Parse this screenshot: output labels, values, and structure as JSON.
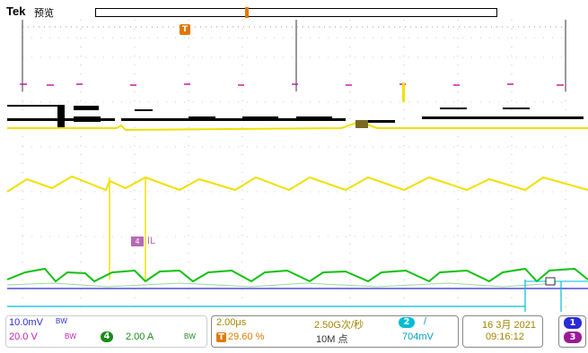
{
  "header": {
    "brand": "Tek",
    "mode": "预览"
  },
  "waveform": {
    "trigger_marker": "T",
    "channel_marker": "4",
    "channel_label": "IL",
    "colors": {
      "ch1": "#2b2bd6",
      "ch2": "#00bcd4",
      "ch3": "#c21ea8",
      "ch4": "#10c010",
      "yellow": "#f0e000",
      "trigger": "#e07800",
      "grid": "#9a9a9a"
    }
  },
  "status": {
    "ch1_scale": "10.0mV",
    "ch1_bw": "BW",
    "ch3_scale": "20.0 V",
    "ch3_bw": "BW",
    "ch4_badge": "4",
    "ch4_scale": "2.00 A",
    "ch4_bw": "BW",
    "time_scale": "2.00μs",
    "trigger_badge": "T",
    "trigger_position": "29.60 %",
    "sample_rate": "2.50G次/秒",
    "record_length": "10M 点",
    "trig_ch_badge": "2",
    "trig_slope": "/",
    "trig_level": "704mV",
    "date": "16 3月 2021",
    "time": "09:16:12",
    "badge_1": "1",
    "badge_3": "3"
  }
}
